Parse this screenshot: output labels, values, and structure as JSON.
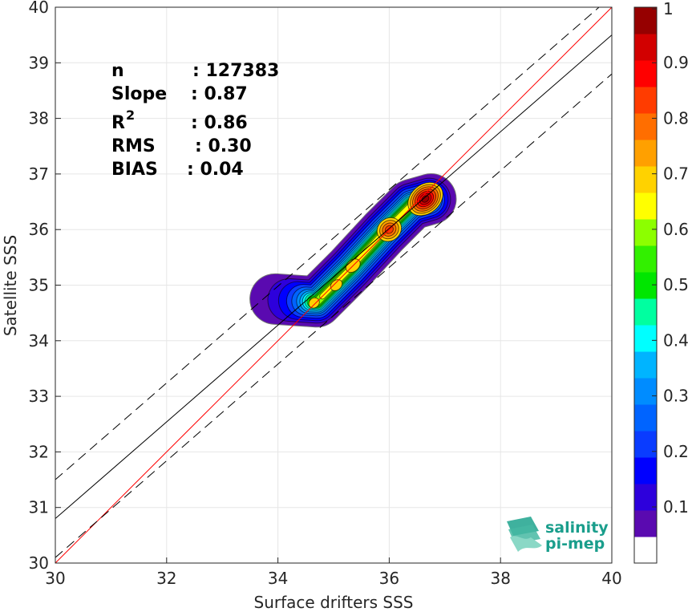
{
  "chart_data": {
    "type": "scatter",
    "subtype": "density-contour",
    "xlabel": "Surface drifters SSS",
    "ylabel": "Satellite SSS",
    "xlim": [
      30,
      40
    ],
    "ylim": [
      30,
      40
    ],
    "x_ticks": [
      "30",
      "32",
      "34",
      "36",
      "38",
      "40"
    ],
    "y_ticks": [
      "30",
      "31",
      "32",
      "33",
      "34",
      "35",
      "36",
      "37",
      "38",
      "39",
      "40"
    ],
    "grid": true,
    "stats": [
      {
        "label": "n",
        "value": ": 127383"
      },
      {
        "label": "Slope",
        "value": ": 0.87"
      },
      {
        "label": "R",
        "sup": "2",
        "value": ": 0.86"
      },
      {
        "label": "RMS",
        "value": ": 0.30"
      },
      {
        "label": "BIAS",
        "value": ": 0.04"
      }
    ],
    "reference_lines": [
      {
        "kind": "identity",
        "slope": 1.0,
        "intercept": 0.0,
        "color": "#ff0000",
        "dash": "solid"
      },
      {
        "kind": "regression",
        "slope": 0.87,
        "intercept": 4.7,
        "color": "#000000",
        "dash": "solid"
      },
      {
        "kind": "upper-bound",
        "slope": 0.87,
        "intercept": 5.4,
        "color": "#000000",
        "dash": "dashed"
      },
      {
        "kind": "lower-bound",
        "slope": 0.87,
        "intercept": 4.0,
        "color": "#000000",
        "dash": "dashed"
      }
    ],
    "density": {
      "ridge": [
        [
          33.95,
          34.75
        ],
        [
          34.7,
          34.7
        ],
        [
          35.3,
          35.3
        ],
        [
          35.9,
          35.95
        ],
        [
          36.4,
          36.45
        ],
        [
          36.75,
          36.55
        ]
      ],
      "levels": [
        0.05,
        0.1,
        0.15,
        0.2,
        0.25,
        0.3,
        0.35,
        0.4,
        0.45,
        0.5,
        0.55,
        0.6,
        0.65,
        0.7,
        0.75,
        0.8,
        0.85,
        0.9,
        0.95
      ],
      "peaks": [
        {
          "x": 36.65,
          "y": 36.55,
          "value": 1.0
        },
        {
          "x": 36.0,
          "y": 36.0,
          "value": 0.83
        },
        {
          "x": 35.35,
          "y": 35.35,
          "value": 0.68
        },
        {
          "x": 35.05,
          "y": 35.0,
          "value": 0.68
        },
        {
          "x": 34.65,
          "y": 34.68,
          "value": 0.66
        }
      ]
    },
    "colorbar": {
      "range": [
        0,
        1
      ],
      "tick_labels": [
        "0.1",
        "0.2",
        "0.3",
        "0.4",
        "0.5",
        "0.6",
        "0.7",
        "0.8",
        "0.9",
        "1"
      ],
      "tick_values": [
        0.1,
        0.2,
        0.3,
        0.4,
        0.5,
        0.6,
        0.7,
        0.8,
        0.9,
        1.0
      ],
      "colors": [
        "#ffffff",
        "#5a0ab0",
        "#2d00dc",
        "#0000ff",
        "#0a3cff",
        "#0064ff",
        "#008cff",
        "#00b4ff",
        "#00ffff",
        "#00ffa0",
        "#00e600",
        "#32f000",
        "#8cff00",
        "#ffff00",
        "#ffd200",
        "#ffa000",
        "#ff6e00",
        "#ff3c00",
        "#ff0000",
        "#d20000",
        "#960000"
      ]
    }
  },
  "logo": {
    "line1": "salinity",
    "line2": "pi-mep",
    "color": "#1a9e8c"
  }
}
